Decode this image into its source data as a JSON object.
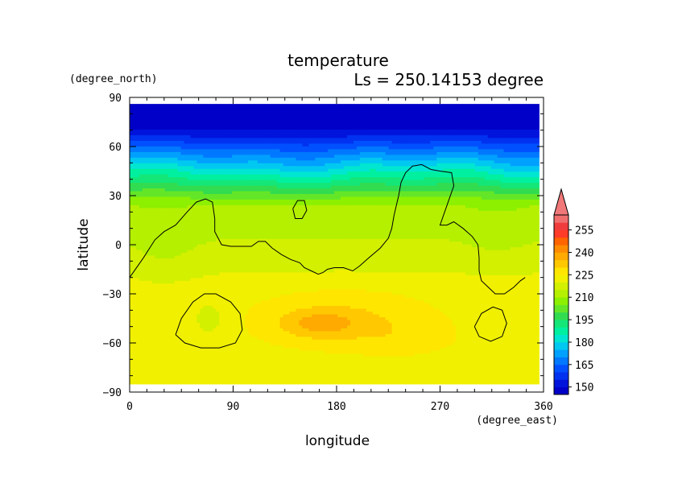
{
  "chart_data": {
    "type": "heatmap",
    "title": "temperature",
    "subtitle": "Ls = 250.14153 degree",
    "xlabel": "longitude",
    "ylabel": "latitude",
    "xunits": "(degree_east)",
    "yunits": "(degree_north)",
    "xlim": [
      0,
      360
    ],
    "ylim": [
      -90,
      90
    ],
    "x_ticks": [
      "0",
      "90",
      "180",
      "270",
      "360"
    ],
    "y_ticks": [
      "90",
      "60",
      "30",
      "0",
      "−30",
      "−60",
      "−90"
    ],
    "colorbar": {
      "labels": [
        "255",
        "240",
        "225",
        "210",
        "195",
        "180",
        "165",
        "150"
      ],
      "levels": [
        145,
        150,
        155,
        160,
        165,
        170,
        175,
        180,
        185,
        190,
        195,
        200,
        205,
        210,
        215,
        220,
        225,
        230,
        235,
        240,
        245,
        250,
        255,
        260
      ],
      "colors": [
        "#0000c8",
        "#0014dc",
        "#0032f0",
        "#0050ff",
        "#0078ff",
        "#00a0ff",
        "#00c8f0",
        "#00e6d2",
        "#00f0a0",
        "#14e678",
        "#32dc50",
        "#64e628",
        "#8cf000",
        "#b4f000",
        "#d2f000",
        "#f0f000",
        "#ffe600",
        "#ffc800",
        "#ffaa00",
        "#ff8c00",
        "#ff6400",
        "#ff3c28",
        "#f03c3c",
        "#f06e6e"
      ],
      "extend_top_color": "#f07878"
    },
    "contour_color": "#000000"
  }
}
